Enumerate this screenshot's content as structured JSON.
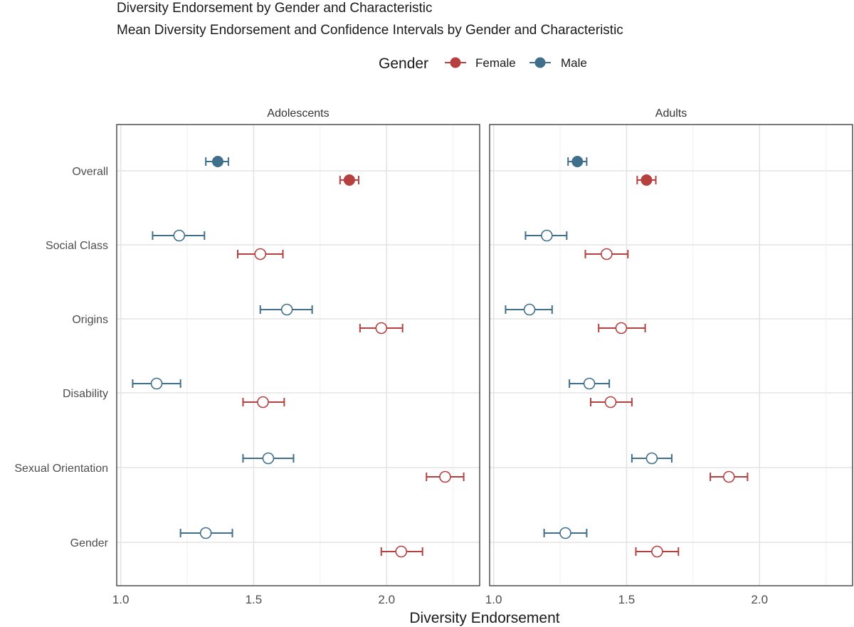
{
  "chart_data": {
    "type": "scatter",
    "subtype": "point-range (mean with 95% confidence interval)",
    "title": "Diversity Endorsement by Gender and Characteristic",
    "subtitle": "Mean Diversity Endorsement and Confidence Intervals by Gender and Characteristic",
    "xlabel": "Diversity Endorsement",
    "ylabel": "",
    "xlim": [
      0.985,
      2.35
    ],
    "xticks": [
      1.0,
      1.5,
      2.0
    ],
    "xtick_labels": [
      "1.0",
      "1.5",
      "2.0"
    ],
    "grid": true,
    "legend": {
      "title": "Gender",
      "position": "top",
      "entries": [
        {
          "name": "Female",
          "color": "#b5403f"
        },
        {
          "name": "Male",
          "color": "#3f6f8b"
        }
      ]
    },
    "categories": [
      "Overall",
      "Social Class",
      "Origins",
      "Disability",
      "Sexual Orientation",
      "Gender"
    ],
    "facets": [
      {
        "label": "Adolescents",
        "series": [
          {
            "name": "Male",
            "mean": [
              1.365,
              1.22,
              1.625,
              1.135,
              1.555,
              1.32
            ],
            "lower": [
              1.32,
              1.12,
              1.525,
              1.045,
              1.46,
              1.225
            ],
            "upper": [
              1.405,
              1.315,
              1.72,
              1.225,
              1.65,
              1.42
            ]
          },
          {
            "name": "Female",
            "mean": [
              1.86,
              1.525,
              1.98,
              1.535,
              2.22,
              2.055
            ],
            "lower": [
              1.825,
              1.44,
              1.9,
              1.46,
              2.15,
              1.98
            ],
            "upper": [
              1.895,
              1.61,
              2.06,
              1.615,
              2.29,
              2.135
            ]
          }
        ]
      },
      {
        "label": "Adults",
        "series": [
          {
            "name": "Male",
            "mean": [
              1.315,
              1.2,
              1.135,
              1.36,
              1.595,
              1.27
            ],
            "lower": [
              1.28,
              1.12,
              1.045,
              1.285,
              1.52,
              1.19
            ],
            "upper": [
              1.35,
              1.275,
              1.22,
              1.435,
              1.67,
              1.35
            ]
          },
          {
            "name": "Female",
            "mean": [
              1.575,
              1.425,
              1.48,
              1.44,
              1.885,
              1.615
            ],
            "lower": [
              1.54,
              1.345,
              1.395,
              1.365,
              1.815,
              1.535
            ],
            "upper": [
              1.61,
              1.505,
              1.57,
              1.52,
              1.955,
              1.695
            ]
          }
        ]
      }
    ],
    "filled_category": "Overall"
  }
}
